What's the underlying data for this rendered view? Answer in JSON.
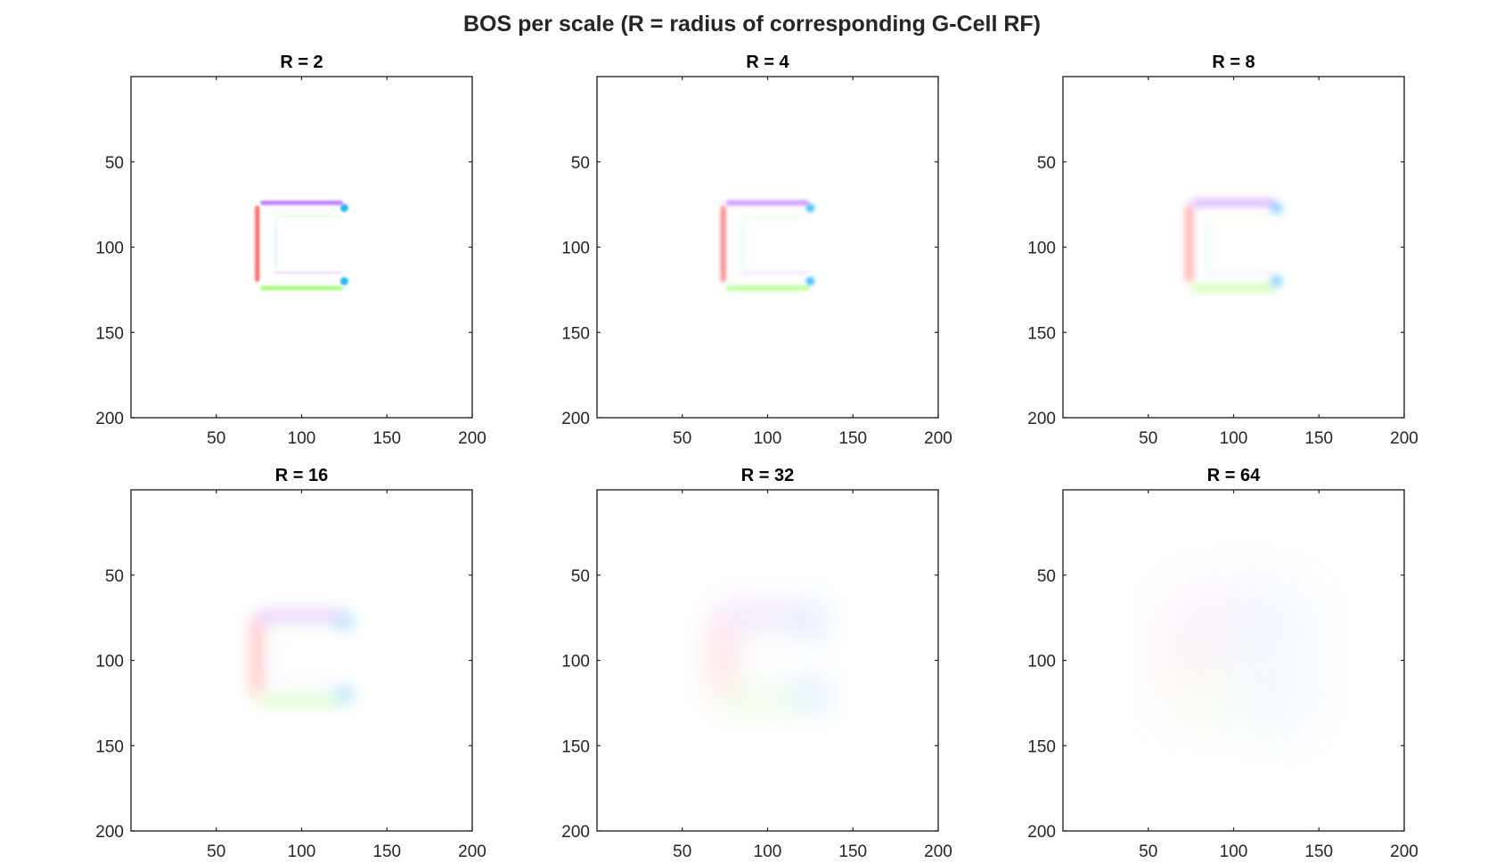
{
  "figure": {
    "title": "BOS per scale (R = radius of corresponding G-Cell RF)"
  },
  "chart_data": [
    {
      "type": "heatmap",
      "title": "R = 2",
      "image_size": [
        200,
        200
      ],
      "xlim": [
        0,
        200
      ],
      "ylim": [
        0,
        200
      ],
      "y_reversed": true,
      "x_ticks": [
        50,
        100,
        150,
        200
      ],
      "y_ticks": [
        50,
        100,
        150,
        200
      ],
      "blur_radius": 2
    },
    {
      "type": "heatmap",
      "title": "R = 4",
      "image_size": [
        200,
        200
      ],
      "xlim": [
        0,
        200
      ],
      "ylim": [
        0,
        200
      ],
      "y_reversed": true,
      "x_ticks": [
        50,
        100,
        150,
        200
      ],
      "y_ticks": [
        50,
        100,
        150,
        200
      ],
      "blur_radius": 4
    },
    {
      "type": "heatmap",
      "title": "R = 8",
      "image_size": [
        200,
        200
      ],
      "xlim": [
        0,
        200
      ],
      "ylim": [
        0,
        200
      ],
      "y_reversed": true,
      "x_ticks": [
        50,
        100,
        150,
        200
      ],
      "y_ticks": [
        50,
        100,
        150,
        200
      ],
      "blur_radius": 8
    },
    {
      "type": "heatmap",
      "title": "R = 16",
      "image_size": [
        200,
        200
      ],
      "xlim": [
        0,
        200
      ],
      "ylim": [
        0,
        200
      ],
      "y_reversed": true,
      "x_ticks": [
        50,
        100,
        150,
        200
      ],
      "y_ticks": [
        50,
        100,
        150,
        200
      ],
      "blur_radius": 16
    },
    {
      "type": "heatmap",
      "title": "R = 32",
      "image_size": [
        200,
        200
      ],
      "xlim": [
        0,
        200
      ],
      "ylim": [
        0,
        200
      ],
      "y_reversed": true,
      "x_ticks": [
        50,
        100,
        150,
        200
      ],
      "y_ticks": [
        50,
        100,
        150,
        200
      ],
      "blur_radius": 32
    },
    {
      "type": "heatmap",
      "title": "R = 64",
      "image_size": [
        200,
        200
      ],
      "xlim": [
        0,
        200
      ],
      "ylim": [
        0,
        200
      ],
      "y_reversed": true,
      "x_ticks": [
        50,
        100,
        150,
        200
      ],
      "y_ticks": [
        50,
        100,
        150,
        200
      ],
      "blur_radius": 64
    }
  ],
  "shape": {
    "description_segments": [
      {
        "name": "left-bar",
        "color": "#ff4d4d",
        "x": [
          74,
          74
        ],
        "y": [
          77,
          119
        ]
      },
      {
        "name": "top-bar",
        "color": "#b266ff",
        "x": [
          77,
          123
        ],
        "y": [
          74,
          74
        ]
      },
      {
        "name": "inner-top-bar",
        "color": "#99ff66",
        "x": [
          85,
          123
        ],
        "y": [
          82,
          82
        ]
      },
      {
        "name": "inner-bottom-bar",
        "color": "#b266ff",
        "x": [
          85,
          123
        ],
        "y": [
          115,
          115
        ]
      },
      {
        "name": "bottom-bar",
        "color": "#99ff66",
        "x": [
          77,
          123
        ],
        "y": [
          124,
          124
        ]
      },
      {
        "name": "inner-left-bar",
        "color": "#66e0ff",
        "x": [
          85,
          85
        ],
        "y": [
          85,
          112
        ]
      },
      {
        "name": "top-right-corner",
        "color": "#00aaff",
        "x": [
          125,
          125
        ],
        "y": [
          77,
          77
        ]
      },
      {
        "name": "bottom-right-corner",
        "color": "#00aaff",
        "x": [
          125,
          125
        ],
        "y": [
          120,
          120
        ]
      }
    ]
  }
}
